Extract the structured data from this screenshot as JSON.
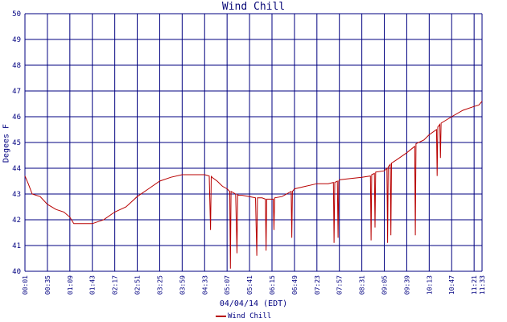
{
  "chart_data": {
    "type": "line",
    "title": "Wind Chill",
    "xlabel": "04/04/14 (EDT)",
    "ylabel": "Degees F",
    "ylim": [
      40,
      50
    ],
    "yticks": [
      "40",
      "41",
      "42",
      "43",
      "44",
      "45",
      "46",
      "47",
      "48",
      "49",
      "50"
    ],
    "xticks": [
      "00:01",
      "00:35",
      "01:09",
      "01:43",
      "02:17",
      "02:51",
      "03:25",
      "03:59",
      "04:33",
      "05:07",
      "05:41",
      "06:15",
      "06:49",
      "07:23",
      "07:57",
      "08:31",
      "09:05",
      "09:39",
      "10:13",
      "10:47",
      "11:21",
      "11:33"
    ],
    "grid": true,
    "legend": "bottom",
    "colors": {
      "series": "#b80000",
      "grid": "#000080",
      "text": "#000080"
    },
    "series": [
      {
        "name": "Wind Chill",
        "x": [
          "00:01",
          "00:06",
          "00:12",
          "00:24",
          "00:35",
          "00:48",
          "01:00",
          "01:09",
          "01:15",
          "01:43",
          "02:00",
          "02:17",
          "02:34",
          "02:51",
          "03:08",
          "03:25",
          "03:42",
          "03:59",
          "04:16",
          "04:33",
          "04:40",
          "04:42",
          "04:43",
          "04:44",
          "04:52",
          "05:00",
          "05:07",
          "05:11",
          "05:12",
          "05:13",
          "05:20",
          "05:22",
          "05:23",
          "05:24",
          "05:30",
          "05:41",
          "05:50",
          "05:52",
          "05:53",
          "05:54",
          "06:00",
          "06:05",
          "06:06",
          "06:07",
          "06:15",
          "06:17",
          "06:18",
          "06:19",
          "06:30",
          "06:44",
          "06:45",
          "06:46",
          "06:49",
          "07:06",
          "07:23",
          "07:40",
          "07:48",
          "07:49",
          "07:50",
          "07:54",
          "07:55",
          "07:56",
          "07:57",
          "08:14",
          "08:31",
          "08:44",
          "08:45",
          "08:46",
          "08:50",
          "08:51",
          "08:52",
          "09:05",
          "09:09",
          "09:10",
          "09:11",
          "09:14",
          "09:15",
          "09:16",
          "09:22",
          "09:39",
          "09:51",
          "09:52",
          "09:53",
          "10:05",
          "10:13",
          "10:24",
          "10:25",
          "10:26",
          "10:29",
          "10:30",
          "10:31",
          "10:47",
          "11:04",
          "11:21",
          "11:28",
          "11:33"
        ],
        "values": [
          43.7,
          43.4,
          43.0,
          42.9,
          42.6,
          42.4,
          42.3,
          42.1,
          41.85,
          41.85,
          42.0,
          42.3,
          42.5,
          42.9,
          43.2,
          43.5,
          43.65,
          43.75,
          43.75,
          43.75,
          43.7,
          41.6,
          43.7,
          43.65,
          43.5,
          43.3,
          43.2,
          43.1,
          40.1,
          43.1,
          43.0,
          40.7,
          43.0,
          42.95,
          42.95,
          42.9,
          42.85,
          40.6,
          42.85,
          42.85,
          42.85,
          42.8,
          40.8,
          42.8,
          42.8,
          42.8,
          41.6,
          42.85,
          42.9,
          43.1,
          41.3,
          43.1,
          43.2,
          43.3,
          43.4,
          43.4,
          43.45,
          41.1,
          43.45,
          43.5,
          41.3,
          43.5,
          43.55,
          43.6,
          43.65,
          43.7,
          41.2,
          43.75,
          43.8,
          41.7,
          43.85,
          43.9,
          44.0,
          41.1,
          44.05,
          44.15,
          41.4,
          44.2,
          44.3,
          44.6,
          44.85,
          41.4,
          44.95,
          45.1,
          45.3,
          45.5,
          43.7,
          45.6,
          45.7,
          44.4,
          45.75,
          46.0,
          46.25,
          46.4,
          46.45,
          46.6
        ]
      }
    ]
  }
}
